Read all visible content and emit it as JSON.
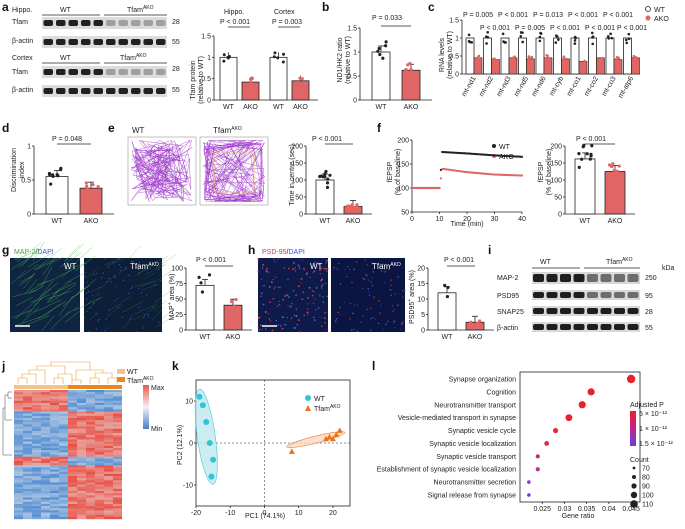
{
  "a": {
    "label": "a",
    "hippo": {
      "region": "Hippo.",
      "wt": "WT",
      "ako": "Tfam",
      "ako_sup": "AKO",
      "band1": "Tfam",
      "band2": "β-actin",
      "kda1": "28",
      "kda2": "55"
    },
    "cortex": {
      "region": "Cortex",
      "wt": "WT",
      "ako": "Tfam",
      "ako_sup": "AKO",
      "band1": "Tfam",
      "band2": "β-actin",
      "kda1": "28",
      "kda2": "55"
    },
    "chart": {
      "ylabel": "Tfam protein",
      "ylabel2": "(relative to WT)",
      "group1": "Hippo.",
      "group2": "Cortex",
      "p1": "P < 0.001",
      "p2": "P = 0.003",
      "x": [
        "WT",
        "AKO",
        "WT",
        "AKO"
      ]
    }
  },
  "b": {
    "label": "b",
    "ylabel": "ND1/HK2 ratio",
    "ylabel2": "(relative to WT)",
    "p": "P = 0.033",
    "x": [
      "WT",
      "AKO"
    ]
  },
  "c": {
    "label": "c",
    "ylabel": "RNA levels",
    "ylabel2": "(relative to WT)",
    "legend": [
      "WT",
      "AKO"
    ],
    "p_top": [
      "P = 0.005",
      "P < 0.001",
      "P = 0.013",
      "P < 0.001",
      "P < 0.001"
    ],
    "p_mid": [
      "P < 0.001",
      "P = 0.005",
      "P < 0.001",
      "P < 0.001",
      "P < 0.001"
    ],
    "genes": [
      "mt-nd1",
      "mt-nd2",
      "mt-nd3",
      "mt-nd5",
      "mt-nd6",
      "mt-cyb",
      "mt-co1",
      "mt-co2",
      "mt-co3",
      "mt-atp6"
    ]
  },
  "d": {
    "label": "d",
    "ylabel": "Discrimination",
    "ylabel2": "index",
    "p": "P = 0.048",
    "x": [
      "WT",
      "AKO"
    ]
  },
  "e": {
    "label": "e",
    "wt": "WT",
    "ako": "Tfam",
    "ako_sup": "AKO",
    "ylabel": "Time in centre (sec)",
    "p": "P < 0.001",
    "x": [
      "WT",
      "AKO"
    ]
  },
  "f": {
    "label": "f",
    "ylabel": "fEPSP",
    "ylabel2": "(% of baseline)",
    "xlabel": "Time (min)",
    "legend": [
      "WT",
      "AKO"
    ],
    "bar_ylabel": "fEPSP",
    "bar_ylabel2": "(% of baseline)",
    "p": "P < 0.001",
    "x": [
      "WT",
      "AKO"
    ]
  },
  "g": {
    "label": "g",
    "stain1": "MAP-2",
    "stain2": "DAPI",
    "wt": "WT",
    "ako": "Tfam",
    "ako_sup": "AKO",
    "ylabel": "MAP",
    "ylabel_sup": "+",
    "ylabel_rest": " area (%)",
    "p": "P < 0.001",
    "x": [
      "WT",
      "AKO"
    ]
  },
  "h": {
    "label": "h",
    "stain1": "PSD-95",
    "stain2": "DAPI",
    "wt": "WT",
    "ako": "Tfam",
    "ako_sup": "AKO",
    "ylabel": "PSD95",
    "ylabel_sup": "+",
    "ylabel_rest": " area (%)",
    "p": "P < 0.001",
    "x": [
      "WT",
      "AKO"
    ]
  },
  "i": {
    "label": "i",
    "wt": "WT",
    "ako": "Tfam",
    "ako_sup": "AKO",
    "kda": "kDa",
    "bands": [
      "MAP-2",
      "PSD95",
      "SNAP25",
      "β-actin"
    ],
    "sizes": [
      "250",
      "95",
      "28",
      "55"
    ]
  },
  "j": {
    "label": "j",
    "legend": [
      "WT",
      "Tfam"
    ],
    "legend_sup": "AKO",
    "scale": [
      "Max",
      "Min"
    ]
  },
  "k": {
    "label": "k",
    "legend": [
      "WT",
      "Tfam"
    ],
    "legend_sup": "AKO",
    "xlabel": "PC1 (74.1%)",
    "ylabel": "PC2 (12.1%)"
  },
  "l": {
    "label": "l",
    "xlabel": "Gene ratio",
    "legend_title": "Adjusted P",
    "legend_p": [
      "5 × 10⁻¹³",
      "1 × 10⁻¹²",
      "1.5 × 10⁻¹²"
    ],
    "legend_count_title": "Count",
    "legend_counts": [
      "70",
      "80",
      "90",
      "100",
      "110"
    ],
    "terms": [
      "Synapse organization",
      "Cognition",
      "Neurotransmitter transport",
      "Vesicle-mediated transport in synapse",
      "Synaptic vesicle cycle",
      "Synaptic vesicle localization",
      "Synaptic vesicle transport",
      "Establishment of synaptic vesicle localization",
      "Neurotransmitter secretion",
      "Signal release from synapse"
    ]
  },
  "chart_data": [
    {
      "panel": "a",
      "type": "bar",
      "categories": [
        "Hippo. WT",
        "Hippo. AKO",
        "Cortex WT",
        "Cortex AKO"
      ],
      "values": [
        1.0,
        0.42,
        1.0,
        0.45
      ],
      "ylim": [
        0,
        1.5
      ],
      "yticks": [
        0,
        0.5,
        1.0,
        1.5
      ],
      "colors": [
        "#ffffff",
        "#e06666",
        "#ffffff",
        "#e06666"
      ]
    },
    {
      "panel": "b",
      "type": "bar",
      "categories": [
        "WT",
        "AKO"
      ],
      "values": [
        1.0,
        0.62
      ],
      "ylim": [
        0,
        1.5
      ],
      "yticks": [
        0,
        0.5,
        1.0,
        1.5
      ]
    },
    {
      "panel": "c",
      "type": "bar",
      "categories": [
        "mt-nd1",
        "mt-nd2",
        "mt-nd3",
        "mt-nd5",
        "mt-nd6",
        "mt-cyb",
        "mt-co1",
        "mt-co2",
        "mt-co3",
        "mt-atp6"
      ],
      "series": [
        {
          "name": "WT",
          "values": [
            1.0,
            1.0,
            1.0,
            1.0,
            1.0,
            1.0,
            1.0,
            1.0,
            1.0,
            1.0
          ]
        },
        {
          "name": "AKO",
          "values": [
            0.45,
            0.4,
            0.45,
            0.42,
            0.45,
            0.42,
            0.35,
            0.45,
            0.4,
            0.45
          ]
        }
      ],
      "ylim": [
        0,
        1.5
      ],
      "yticks": [
        0,
        0.5,
        1.0,
        1.5
      ]
    },
    {
      "panel": "d",
      "type": "bar",
      "categories": [
        "WT",
        "AKO"
      ],
      "values": [
        0.55,
        0.38
      ],
      "ylim": [
        0,
        1.0
      ],
      "yticks": [
        0,
        0.5,
        1.0
      ]
    },
    {
      "panel": "e",
      "type": "bar",
      "categories": [
        "WT",
        "AKO"
      ],
      "values": [
        100,
        22
      ],
      "ylim": [
        0,
        200
      ],
      "yticks": [
        0,
        50,
        100,
        150,
        200
      ]
    },
    {
      "panel": "f",
      "type": "line",
      "xlim": [
        0,
        40
      ],
      "xticks": [
        0,
        10,
        20,
        30,
        40
      ],
      "ylim": [
        50,
        200
      ],
      "yticks": [
        50,
        100,
        150,
        200
      ],
      "series": [
        {
          "name": "WT",
          "x": [
            0,
            10,
            11,
            20,
            30,
            40
          ],
          "y": [
            100,
            100,
            175,
            172,
            168,
            165
          ]
        },
        {
          "name": "AKO",
          "x": [
            0,
            10,
            11,
            20,
            30,
            40
          ],
          "y": [
            100,
            100,
            140,
            133,
            128,
            126
          ]
        }
      ]
    },
    {
      "panel": "f-bar",
      "type": "bar",
      "categories": [
        "WT",
        "AKO"
      ],
      "values": [
        162,
        125
      ],
      "ylim": [
        0,
        200
      ],
      "yticks": [
        0,
        50,
        100,
        150,
        200
      ]
    },
    {
      "panel": "g",
      "type": "bar",
      "categories": [
        "WT",
        "AKO"
      ],
      "values": [
        72,
        40
      ],
      "ylim": [
        0,
        100
      ],
      "yticks": [
        0,
        25,
        50,
        75,
        100
      ]
    },
    {
      "panel": "h",
      "type": "bar",
      "categories": [
        "WT",
        "AKO"
      ],
      "values": [
        12,
        2.5
      ],
      "ylim": [
        0,
        20
      ],
      "yticks": [
        0,
        5,
        10,
        15,
        20
      ]
    },
    {
      "panel": "k",
      "type": "scatter",
      "xlim": [
        -20,
        25
      ],
      "ylim": [
        -15,
        15
      ],
      "xticks": [
        -20,
        -10,
        0,
        10,
        20
      ],
      "yticks": [
        -10,
        0,
        10
      ],
      "series": [
        {
          "name": "WT",
          "x": [
            -19,
            -18,
            -17,
            -16,
            -15.5,
            -15
          ],
          "y": [
            11,
            9,
            5,
            0,
            -8,
            -4
          ]
        },
        {
          "name": "TfamAKO",
          "x": [
            8,
            18,
            19,
            20,
            21,
            22
          ],
          "y": [
            -2,
            1,
            1.5,
            1,
            2,
            3
          ]
        }
      ]
    },
    {
      "panel": "l",
      "type": "scatter",
      "categories": [
        "Synapse organization",
        "Cognition",
        "Neurotransmitter transport",
        "Vesicle-mediated transport in synapse",
        "Synaptic vesicle cycle",
        "Synaptic vesicle localization",
        "Synaptic vesicle transport",
        "Establishment of synaptic vesicle localization",
        "Neurotransmitter secretion",
        "Signal release from synapse"
      ],
      "gene_ratio": [
        0.045,
        0.036,
        0.034,
        0.031,
        0.028,
        0.026,
        0.024,
        0.024,
        0.022,
        0.022
      ],
      "xlim": [
        0.02,
        0.047
      ],
      "xticks": [
        0.025,
        0.03,
        0.035,
        0.04,
        0.045
      ]
    }
  ]
}
